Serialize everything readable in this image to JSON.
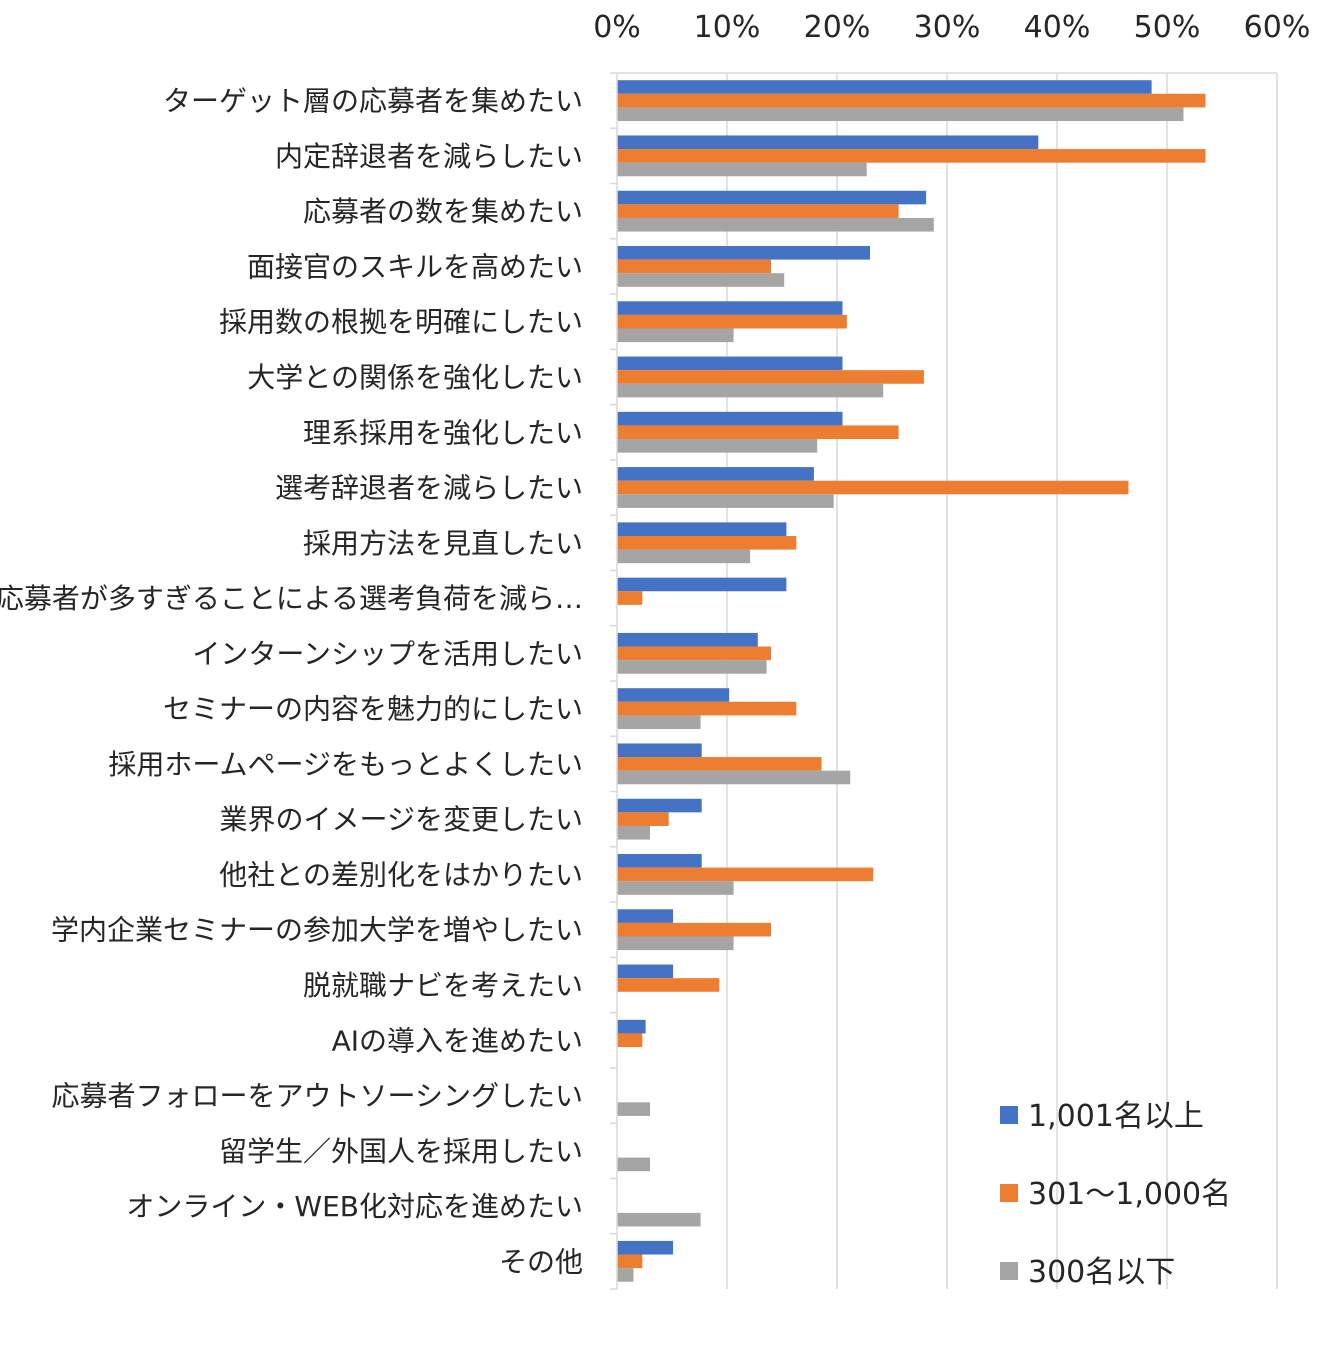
{
  "chart_data": {
    "type": "bar",
    "orientation": "horizontal",
    "categories": [
      "ターゲット層の応募者を集めたい",
      "内定辞退者を減らしたい",
      "応募者の数を集めたい",
      "面接官のスキルを高めたい",
      "採用数の根拠を明確にしたい",
      "大学との関係を強化したい",
      "理系採用を強化したい",
      "選考辞退者を減らしたい",
      "採用方法を見直したい",
      "応募者が多すぎることによる選考負荷を減ら…",
      "インターンシップを活用したい",
      "セミナーの内容を魅力的にしたい",
      "採用ホームページをもっとよくしたい",
      "業界のイメージを変更したい",
      "他社との差別化をはかりたい",
      "学内企業セミナーの参加大学を増やしたい",
      "脱就職ナビを考えたい",
      "AIの導入を進めたい",
      "応募者フォローをアウトソーシングしたい",
      "留学生／外国人を採用したい",
      "オンライン・WEB化対応を進めたい",
      "その他"
    ],
    "series": [
      {
        "name": "1,001名以上",
        "color": "#4472c4",
        "values": [
          48.6,
          38.3,
          28.1,
          23.0,
          20.5,
          20.5,
          20.5,
          17.9,
          15.4,
          15.4,
          12.8,
          10.2,
          7.7,
          7.7,
          7.7,
          5.1,
          5.1,
          2.6,
          0,
          0,
          0,
          5.1
        ]
      },
      {
        "name": "301～1,000名",
        "color": "#ed7d31",
        "values": [
          53.5,
          53.5,
          25.6,
          14.0,
          20.9,
          27.9,
          25.6,
          46.5,
          16.3,
          2.3,
          14.0,
          16.3,
          18.6,
          4.7,
          23.3,
          14.0,
          9.3,
          2.3,
          0,
          0,
          0,
          2.3
        ]
      },
      {
        "name": "300名以下",
        "color": "#a5a5a5",
        "values": [
          51.5,
          22.7,
          28.8,
          15.2,
          10.6,
          24.2,
          18.2,
          19.7,
          12.1,
          0,
          13.6,
          7.6,
          21.2,
          3.0,
          10.6,
          10.6,
          0,
          0,
          3.0,
          3.0,
          7.6,
          1.5
        ]
      }
    ],
    "x_ticks": [
      "0%",
      "10%",
      "20%",
      "30%",
      "40%",
      "50%",
      "60%"
    ],
    "xlim": [
      0,
      60
    ],
    "x_unit": "%",
    "xlabel": "",
    "ylabel": "",
    "title": "",
    "grid": true,
    "axis_position": "top",
    "legend_position": "bottom-right"
  }
}
